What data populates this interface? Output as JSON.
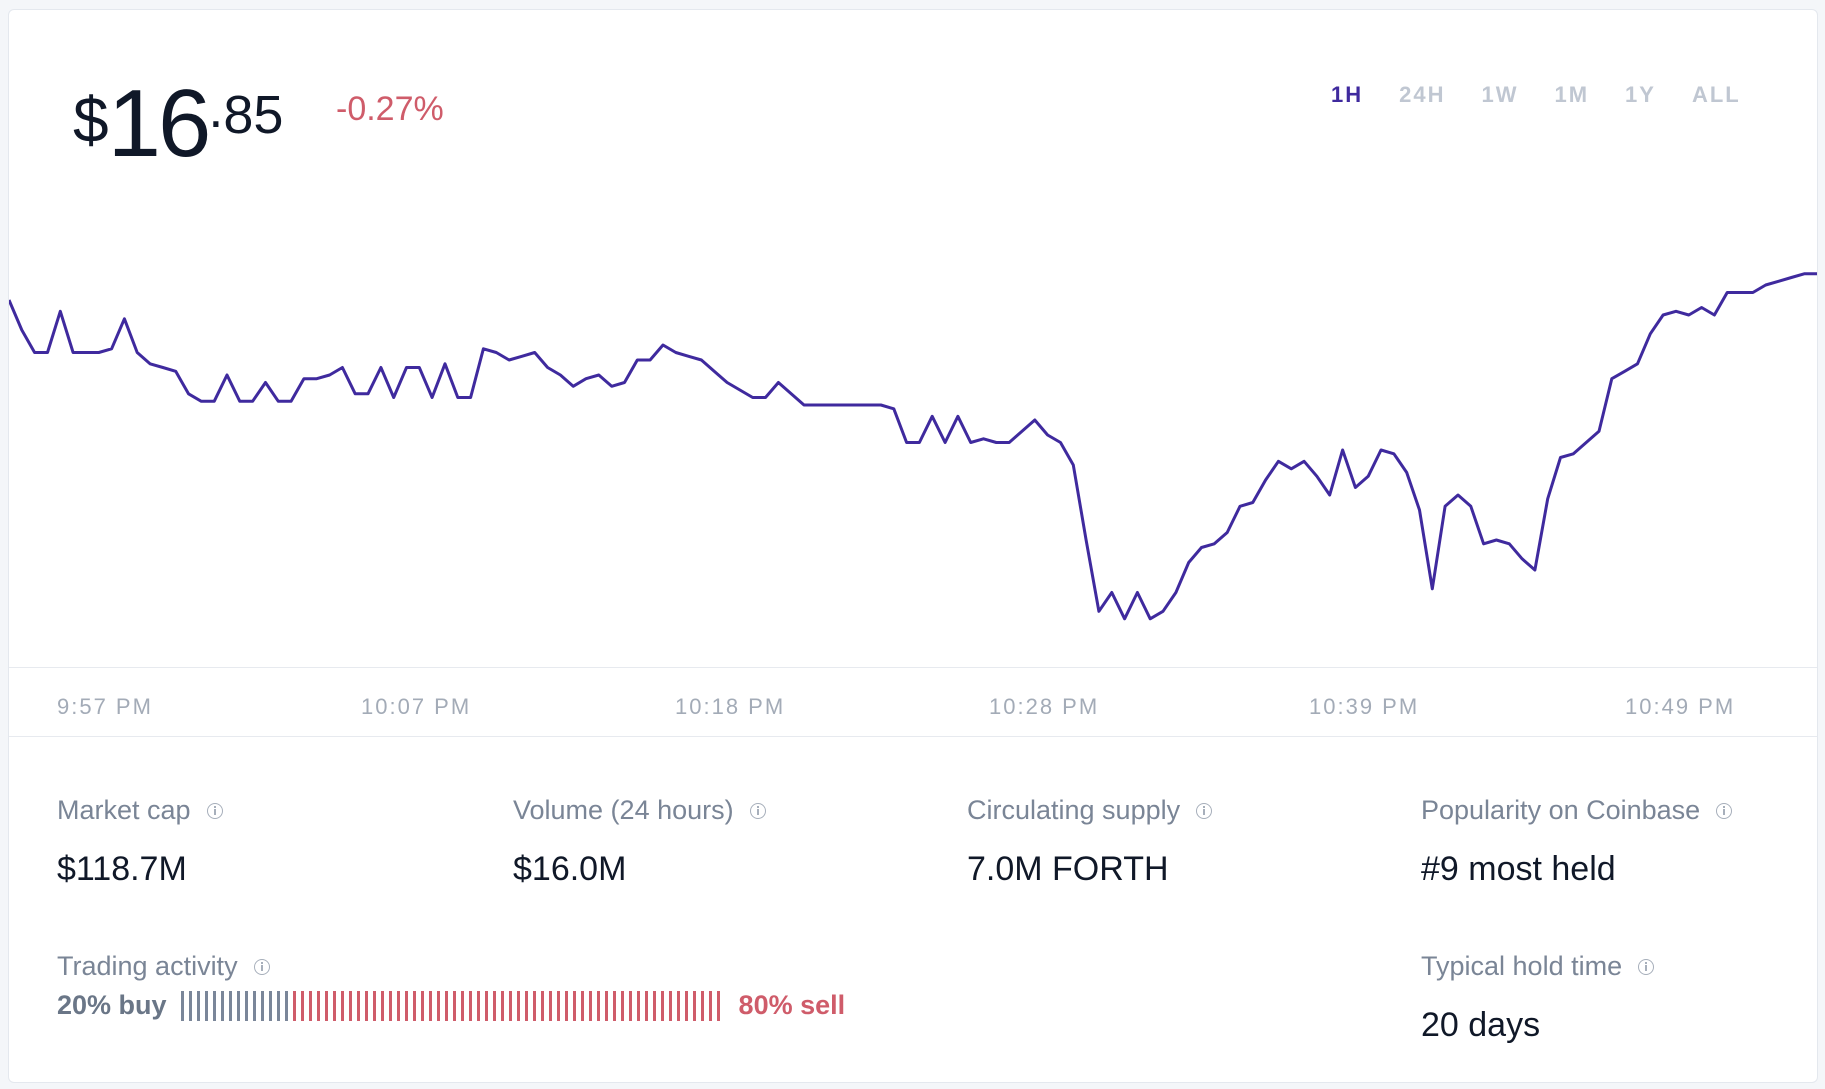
{
  "price": {
    "currency_symbol": "$",
    "integer": "16",
    "decimal_sep": ".",
    "cents": "85",
    "change": "-0.27%"
  },
  "time_ranges": [
    {
      "label": "1H",
      "active": true
    },
    {
      "label": "24H",
      "active": false
    },
    {
      "label": "1W",
      "active": false
    },
    {
      "label": "1M",
      "active": false
    },
    {
      "label": "1Y",
      "active": false
    },
    {
      "label": "ALL",
      "active": false
    }
  ],
  "colors": {
    "line": "#3f2a9e",
    "negative": "#cf5c6a",
    "buy_bar": "#7a8699",
    "sell_bar": "#cf5c6a"
  },
  "chart_data": {
    "type": "line",
    "x_ticks": [
      "9:57 PM",
      "10:07 PM",
      "10:18 PM",
      "10:28 PM",
      "10:39 PM",
      "10:49 PM"
    ],
    "y_relative": [
      0.08,
      0.16,
      0.22,
      0.22,
      0.11,
      0.22,
      0.22,
      0.22,
      0.21,
      0.13,
      0.22,
      0.25,
      0.26,
      0.27,
      0.33,
      0.35,
      0.35,
      0.28,
      0.35,
      0.35,
      0.3,
      0.35,
      0.35,
      0.29,
      0.29,
      0.28,
      0.26,
      0.33,
      0.33,
      0.26,
      0.34,
      0.26,
      0.26,
      0.34,
      0.25,
      0.34,
      0.34,
      0.21,
      0.22,
      0.24,
      0.23,
      0.22,
      0.26,
      0.28,
      0.31,
      0.29,
      0.28,
      0.31,
      0.3,
      0.24,
      0.24,
      0.2,
      0.22,
      0.23,
      0.24,
      0.27,
      0.3,
      0.32,
      0.34,
      0.34,
      0.3,
      0.33,
      0.36,
      0.36,
      0.36,
      0.36,
      0.36,
      0.36,
      0.36,
      0.37,
      0.46,
      0.46,
      0.39,
      0.46,
      0.39,
      0.46,
      0.45,
      0.46,
      0.46,
      0.43,
      0.4,
      0.44,
      0.46,
      0.52,
      0.72,
      0.91,
      0.86,
      0.93,
      0.86,
      0.93,
      0.91,
      0.86,
      0.78,
      0.74,
      0.73,
      0.7,
      0.63,
      0.62,
      0.56,
      0.51,
      0.53,
      0.51,
      0.55,
      0.6,
      0.48,
      0.58,
      0.55,
      0.48,
      0.49,
      0.54,
      0.64,
      0.85,
      0.63,
      0.6,
      0.63,
      0.73,
      0.72,
      0.73,
      0.77,
      0.8,
      0.61,
      0.5,
      0.49,
      0.46,
      0.43,
      0.29,
      0.27,
      0.25,
      0.17,
      0.12,
      0.11,
      0.12,
      0.1,
      0.12,
      0.06,
      0.06,
      0.06,
      0.04,
      0.03,
      0.02,
      0.01,
      0.01
    ],
    "ylim": [
      0,
      1
    ]
  },
  "stats": [
    {
      "label": "Market cap",
      "value": "$118.7M"
    },
    {
      "label": "Volume (24 hours)",
      "value": "$16.0M"
    },
    {
      "label": "Circulating supply",
      "value": "7.0M FORTH"
    },
    {
      "label": "Popularity on Coinbase",
      "value": "#9 most held"
    }
  ],
  "trading": {
    "label": "Trading activity",
    "buy_label": "20% buy",
    "sell_label": "80% sell",
    "buy_pct": 20,
    "sell_pct": 80
  },
  "hold": {
    "label": "Typical hold time",
    "value": "20 days"
  }
}
